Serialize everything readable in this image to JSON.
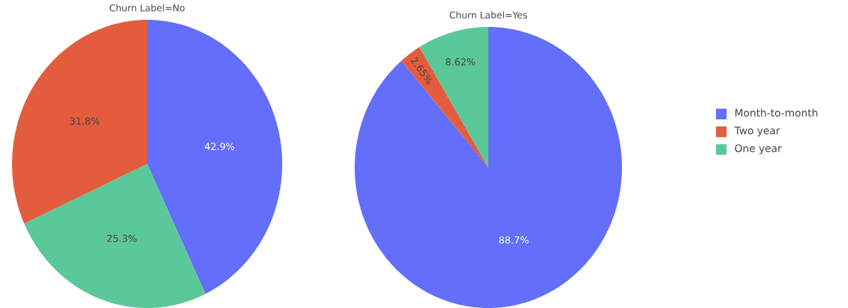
{
  "chart_data": [
    {
      "type": "pie",
      "title": "Churn Label=No",
      "categories": [
        null,
        null,
        null
      ],
      "values": [
        42.9,
        25.3,
        31.8
      ],
      "colors": [
        "#636efa",
        "#5bc89a",
        "#e35c3e"
      ],
      "value_labels": [
        "42.9%",
        "25.3%",
        "31.8%"
      ]
    },
    {
      "type": "pie",
      "title": "Churn Label=Yes",
      "categories": [
        "Month-to-month",
        "Two year",
        "One year"
      ],
      "values": [
        88.7,
        2.65,
        8.62
      ],
      "colors": [
        "#636efa",
        "#e35c3e",
        "#5bc89a"
      ],
      "value_labels": [
        "88.7%",
        "2.65%",
        "8.62%"
      ],
      "legend": "right"
    }
  ]
}
